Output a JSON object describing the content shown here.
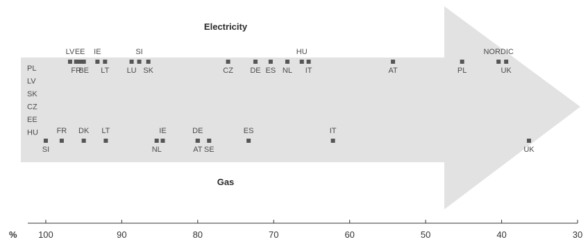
{
  "titles": {
    "electricity": "Electricity",
    "gas": "Gas"
  },
  "axis": {
    "unit_label": "%",
    "ticks": [
      100,
      90,
      80,
      70,
      60,
      50,
      40,
      30
    ],
    "range": [
      101,
      30
    ]
  },
  "colors": {
    "arrow": "#e2e2e2",
    "marker": "#555555",
    "axis": "#333333",
    "text": "#4a4a4a"
  },
  "chart_data": {
    "type": "scatter",
    "title": "",
    "xlabel": "%",
    "xlim": [
      101,
      30
    ],
    "series": [
      {
        "name": "Electricity",
        "points": [
          {
            "label": "LV",
            "x": 96.8,
            "pos": "above"
          },
          {
            "label": "EE",
            "x": 95.5,
            "pos": "above"
          },
          {
            "label": "IE",
            "x": 93.2,
            "pos": "above"
          },
          {
            "label": "SI",
            "x": 87.7,
            "pos": "above"
          },
          {
            "label": "HU",
            "x": 66.3,
            "pos": "above"
          },
          {
            "label": "NORDIC",
            "x": 40.4,
            "pos": "above"
          },
          {
            "label": "FR",
            "x": 96.0,
            "pos": "below"
          },
          {
            "label": "BE",
            "x": 95.0,
            "pos": "below"
          },
          {
            "label": "LT",
            "x": 92.2,
            "pos": "below"
          },
          {
            "label": "LU",
            "x": 88.7,
            "pos": "below"
          },
          {
            "label": "SK",
            "x": 86.5,
            "pos": "below"
          },
          {
            "label": "CZ",
            "x": 76.0,
            "pos": "below"
          },
          {
            "label": "DE",
            "x": 72.4,
            "pos": "below"
          },
          {
            "label": "ES",
            "x": 70.4,
            "pos": "below"
          },
          {
            "label": "NL",
            "x": 68.2,
            "pos": "below"
          },
          {
            "label": "IT",
            "x": 65.4,
            "pos": "below"
          },
          {
            "label": "AT",
            "x": 54.3,
            "pos": "below"
          },
          {
            "label": "PL",
            "x": 45.2,
            "pos": "below"
          },
          {
            "label": "UK",
            "x": 39.4,
            "pos": "below"
          }
        ]
      },
      {
        "name": "Gas",
        "points": [
          {
            "label": "FR",
            "x": 97.9,
            "pos": "above"
          },
          {
            "label": "DK",
            "x": 95.0,
            "pos": "above"
          },
          {
            "label": "LT",
            "x": 92.1,
            "pos": "above"
          },
          {
            "label": "IE",
            "x": 84.6,
            "pos": "above"
          },
          {
            "label": "DE",
            "x": 80.0,
            "pos": "above"
          },
          {
            "label": "ES",
            "x": 73.3,
            "pos": "above"
          },
          {
            "label": "IT",
            "x": 62.2,
            "pos": "above"
          },
          {
            "label": "SI",
            "x": 100.0,
            "pos": "below"
          },
          {
            "label": "NL",
            "x": 85.4,
            "pos": "below"
          },
          {
            "label": "AT",
            "x": 80.0,
            "pos": "below"
          },
          {
            "label": "SE",
            "x": 78.5,
            "pos": "below"
          },
          {
            "label": "UK",
            "x": 36.4,
            "pos": "below"
          }
        ]
      }
    ],
    "stacked_labels": [
      "PL",
      "LV",
      "SK",
      "CZ",
      "EE",
      "HU"
    ]
  }
}
